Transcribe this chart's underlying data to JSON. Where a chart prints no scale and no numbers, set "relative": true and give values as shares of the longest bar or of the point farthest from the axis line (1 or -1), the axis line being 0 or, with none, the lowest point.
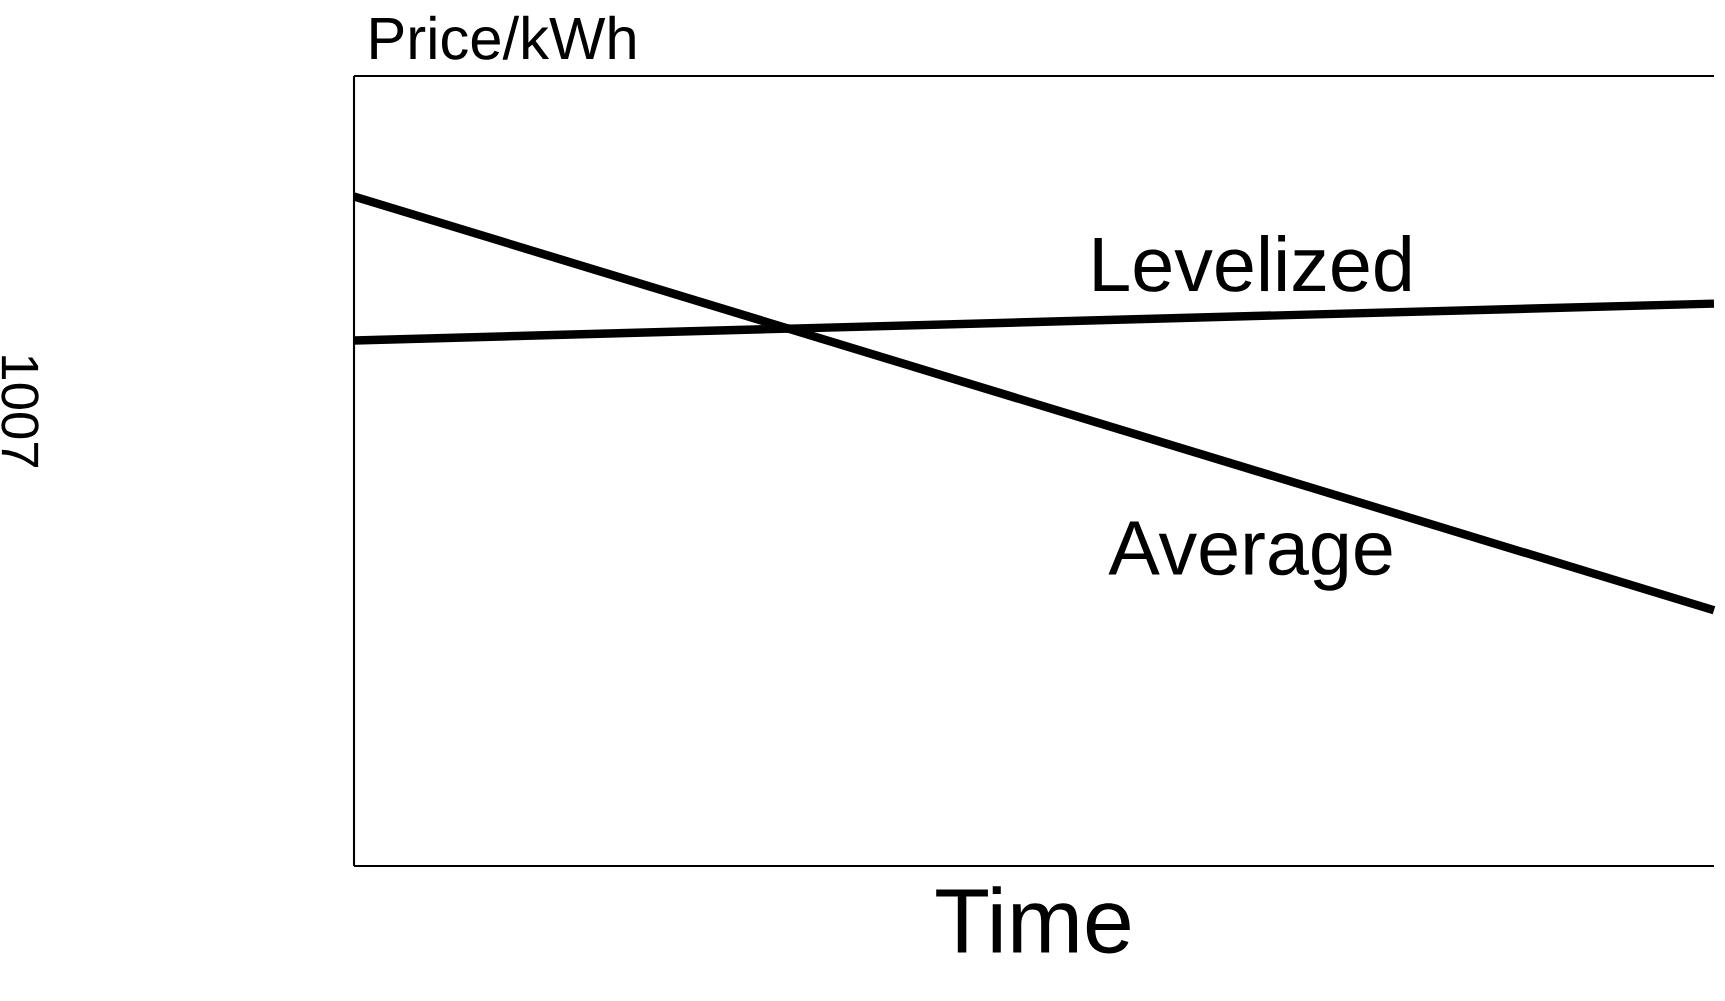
{
  "chart_data": {
    "type": "line",
    "relative": true,
    "xlabel": "Time",
    "ylabel": "Price/kWh",
    "categories": [
      null,
      null
    ],
    "series": [
      {
        "name": "Levelized",
        "color": "#000000",
        "values": [
          0.785,
          0.84
        ]
      },
      {
        "name": "Average",
        "color": "#000000",
        "values": [
          1,
          0.382
        ]
      }
    ],
    "annotations": [
      "1007"
    ],
    "line_style": "solid"
  }
}
